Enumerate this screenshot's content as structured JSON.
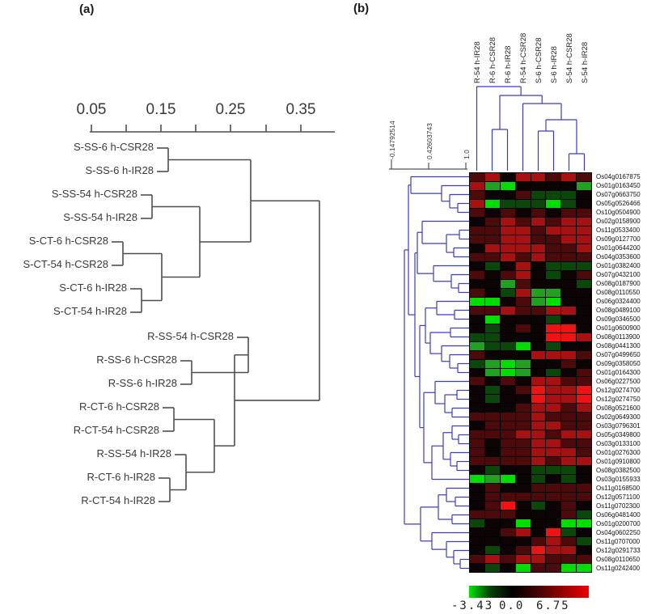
{
  "panel_a": {
    "label": "(a)",
    "axis_ticks": [
      "0.05",
      "0.15",
      "0.25",
      "0.35"
    ],
    "leaves": [
      "S-SS-6 h-CSR28",
      "S-SS-6 h-IR28",
      "S-SS-54 h-CSR28",
      "S-SS-54 h-IR28",
      "S-CT-6 h-CSR28",
      "S-CT-54 h-CSR28",
      "S-CT-6 h-IR28",
      "S-CT-54 h-IR28",
      "R-SS-54 h-CSR28",
      "R-SS-6 h-CSR28",
      "R-SS-6 h-IR28",
      "R-CT-6 h-CSR28",
      "R-CT-54 h-CSR28",
      "R-SS-54 h-IR28",
      "R-CT-6 h-IR28",
      "R-CT-54 h-IR28"
    ]
  },
  "panel_b": {
    "label": "(b)",
    "scale_ticks": [
      "-0.14792514",
      "0.42603743",
      "1.0"
    ],
    "col_labels": [
      "R-54 h-IR28",
      "R-6 h-CSR28",
      "R-6 h-IR28",
      "R-54 h-CSR28",
      "S-6 h-CSR28",
      "S-6 h-IR28",
      "S-54 h-CSR28",
      "S-54 h-IR28"
    ],
    "row_labels": [
      "Os04g0167875",
      "Os01g0163450",
      "Os07g0663750",
      "Os05g0526466",
      "Os10g0504900",
      "Os02g0158900",
      "Os11g0533400",
      "Os09g0127700",
      "Os01g0644200",
      "Os04g0353600",
      "Os01g0382400",
      "Os07g0432100",
      "Os08g0187900",
      "Os08g0110550",
      "Os06g0324400",
      "Os08g0489100",
      "Os09g0346500",
      "Os01g0600900",
      "Os08g0113900",
      "Os08g0441300",
      "Os07g0499650",
      "Os09g0358050",
      "Os01g0164300",
      "Os06g0227500",
      "Os12g0274700",
      "Os12g0274750",
      "Os08g0521600",
      "Os02g0649300",
      "Os03g0796301",
      "Os05g0349800",
      "Os03g0133100",
      "Os01g0276300",
      "Os01g0910800",
      "Os08g0382500",
      "Os03g0155933",
      "Os11g0168500",
      "Os12g0571100",
      "Os11g0702300",
      "Os06g0481400",
      "Os01g0200700",
      "Os04g0602250",
      "Os11g0707000",
      "Os12g0291733",
      "Os08g0110650",
      "Os11g0242400"
    ],
    "colorbar": {
      "min": "-3.43",
      "mid": "0.0",
      "max": "6.75"
    },
    "palette": {
      "B": "#00dd00",
      "G": "#22a022",
      "g": "#0b470b",
      "k": "#0c0404",
      "m": "#4d0a0a",
      "r": "#a61212",
      "R": "#ee1414"
    },
    "heat_rows": [
      "mrkrrmrm",
      "rGBkkkkG",
      "mkkmgggk",
      "rBgggBgk",
      "mkmkmkmm",
      "kmrmrmrr",
      "mmrrmrrr",
      "mmrrmmrr",
      "krrrrmmr",
      "mmrmrmmm",
      "kgkrkggg",
      "mkmrkgkm",
      "kkGmkkkg",
      "mkgrGGkk",
      "BBkmGBkk",
      "mmrmmrrk",
      "kBkkkgkk",
      "kgkmkRRk",
      "ggkkkRRr",
      "GggBkgkk",
      "mkkkrrrm",
      "gGBGkkmk",
      "kGBGkgkm",
      "mkmkrrmm",
      "kgkmRrrR",
      "kgkkRrrR",
      "kkkmrrmr",
      "mmmmrmmm",
      "kmmmrrmm",
      "mmmrrmrr",
      "mkmmrrmm",
      "mkmmrrrm",
      "mmmmrmrr",
      "kgkkgggk",
      "BGBkgkgk",
      "kmkkmmmm",
      "kmmmmmmm",
      "kmRkgkmk",
      "mmmkkkmg",
      "gkkBkkBB",
      "kkmrkRgk",
      "kkkkmrmg",
      "kgkmRrrk",
      "mrmrrmmm",
      "kgkBmmBB"
    ]
  },
  "colors": {
    "dendro_a": "#4f4f52",
    "dendro_b": "#3c3cc0",
    "text": "#2f2f2f"
  },
  "chart_data": [
    {
      "type": "dendrogram",
      "panel": "a",
      "orientation": "leaves-left, distance increases rightward",
      "axis_label_ticks": [
        0.05,
        0.15,
        0.25,
        0.35
      ],
      "axis_minor_ticks": [
        0.05,
        0.1,
        0.15,
        0.2,
        0.25,
        0.3,
        0.35
      ],
      "leaves": [
        "S-SS-6 h-CSR28",
        "S-SS-6 h-IR28",
        "S-SS-54 h-CSR28",
        "S-SS-54 h-IR28",
        "S-CT-6 h-CSR28",
        "S-CT-54 h-CSR28",
        "S-CT-6 h-IR28",
        "S-CT-54 h-IR28",
        "R-SS-54 h-CSR28",
        "R-SS-6 h-CSR28",
        "R-SS-6 h-IR28",
        "R-CT-6 h-CSR28",
        "R-CT-54 h-CSR28",
        "R-SS-54 h-IR28",
        "R-CT-6 h-IR28",
        "R-CT-54 h-IR28"
      ],
      "newick_approx": "(((S-SS-6 h-CSR28,S-SS-6 h-IR28),((S-SS-54 h-CSR28,S-SS-54 h-IR28),((S-CT-6 h-CSR28,S-CT-54 h-CSR28),(S-CT-6 h-IR28,S-CT-54 h-IR28)))),((R-SS-54 h-CSR28,(R-SS-6 h-CSR28,R-SS-6 h-IR28)),((R-CT-6 h-CSR28,R-CT-54 h-CSR28),(R-SS-54 h-IR28,(R-CT-6 h-IR28,R-CT-54 h-IR28)))));"
    },
    {
      "type": "heatmap",
      "panel": "b",
      "columns": [
        "R-54 h-IR28",
        "R-6 h-CSR28",
        "R-6 h-IR28",
        "R-54 h-CSR28",
        "S-6 h-CSR28",
        "S-6 h-IR28",
        "S-54 h-CSR28",
        "S-54 h-IR28"
      ],
      "rows": [
        "Os04g0167875",
        "Os01g0163450",
        "Os07g0663750",
        "Os05g0526466",
        "Os10g0504900",
        "Os02g0158900",
        "Os11g0533400",
        "Os09g0127700",
        "Os01g0644200",
        "Os04g0353600",
        "Os01g0382400",
        "Os07g0432100",
        "Os08g0187900",
        "Os08g0110550",
        "Os06g0324400",
        "Os08g0489100",
        "Os09g0346500",
        "Os01g0600900",
        "Os08g0113900",
        "Os08g0441300",
        "Os07g0499650",
        "Os09g0358050",
        "Os01g0164300",
        "Os06g0227500",
        "Os12g0274700",
        "Os12g0274750",
        "Os08g0521600",
        "Os02g0649300",
        "Os03g0796301",
        "Os05g0349800",
        "Os03g0133100",
        "Os01g0276300",
        "Os01g0910800",
        "Os08g0382500",
        "Os03g0155933",
        "Os11g0168500",
        "Os12g0571100",
        "Os11g0702300",
        "Os06g0481400",
        "Os01g0200700",
        "Os04g0602250",
        "Os11g0707000",
        "Os12g0291733",
        "Os08g0110650",
        "Os11g0242400"
      ],
      "color_scale": {
        "min": -3.43,
        "mid": 0.0,
        "max": 6.75,
        "min_color": "#00dd00",
        "mid_color": "#000000",
        "max_color": "#ee0000"
      },
      "values_encoded_rows": [
        "mrkrrmrm",
        "rGBkkkkG",
        "mkkmgggk",
        "rBgggBgk",
        "mkmkmkmm",
        "kmrmrmrr",
        "mmrrmrrr",
        "mmrrmmrr",
        "krrrrmmr",
        "mmrmrmmm",
        "kgkrkggg",
        "mkmrkgkm",
        "kkGmkkkg",
        "mkgrGGkk",
        "BBkmGBkk",
        "mmrmmrrk",
        "kBkkkgkk",
        "kgkmkRRk",
        "ggkkkRRr",
        "GggBkgkk",
        "mkkkrrrm",
        "gGBGkkmk",
        "kGBGkgkm",
        "mkmkrrmm",
        "kgkmRrrR",
        "kgkkRrrR",
        "kkkmrrmr",
        "mmmmrmmm",
        "kmmmrrmm",
        "mmmrrmrr",
        "mkmmrrmm",
        "mkmmrrrm",
        "mmmmrmrr",
        "kgkkgggk",
        "BGBkgkgk",
        "kmkkmmmm",
        "kmmmmmmm",
        "kmRkgkmk",
        "mmmkkkmg",
        "gkkBkkBB",
        "kkmrkRgk",
        "kkkkmrmg",
        "kgkmRrrk",
        "mrmrrmmm",
        "kgkBmmBB"
      ],
      "code_value_legend": {
        "B": -3.0,
        "G": -1.5,
        "g": -0.6,
        "k": 0.0,
        "m": 0.8,
        "r": 2.5,
        "R": 5.5
      },
      "column_tree_scale_ticks": [
        -0.14792514,
        0.42603743,
        1.0
      ],
      "column_tree_newick_approx": "(R-54 h-IR28,((R-6 h-CSR28,R-6 h-IR28),(R-54 h-CSR28,((S-6 h-CSR28,S-6 h-IR28),(S-54 h-CSR28,S-54 h-IR28)))));",
      "legend_position": "colorbar below heatmap",
      "grid": false
    }
  ]
}
